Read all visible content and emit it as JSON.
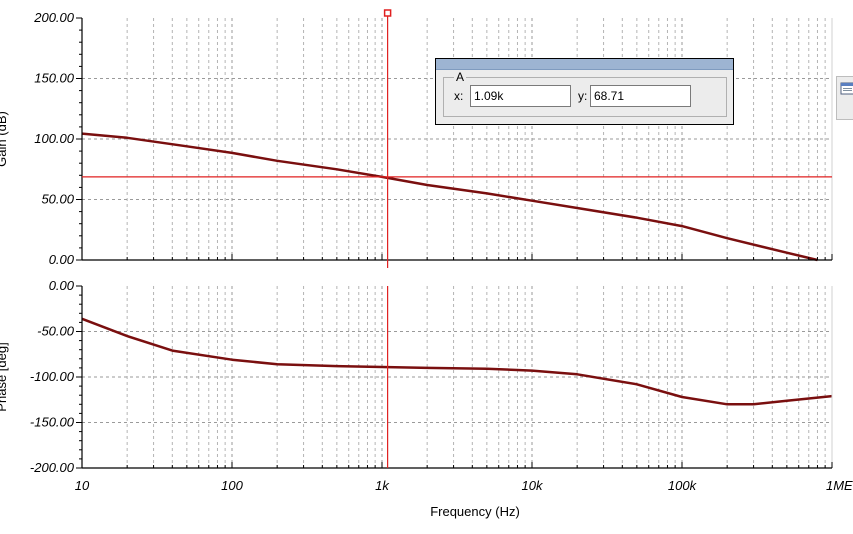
{
  "chart_data": [
    {
      "type": "line",
      "name": "gain",
      "ylabel": "Gain (dB)",
      "xscale": "log",
      "xlim": [
        10,
        1000000
      ],
      "ylim": [
        0,
        200
      ],
      "grid": true,
      "yticks": [
        "200.00",
        "150.00",
        "100.00",
        "50.00",
        "0.00"
      ],
      "color": "#7a0f0f",
      "x": [
        10,
        20,
        50,
        100,
        200,
        500,
        1000,
        2000,
        5000,
        10000,
        20000,
        50000,
        100000,
        200000,
        500000,
        800000
      ],
      "y": [
        104.5,
        101,
        94,
        88.5,
        82,
        75,
        68.7,
        62,
        55,
        49,
        43,
        35,
        28,
        18,
        6,
        0
      ]
    },
    {
      "type": "line",
      "name": "phase",
      "ylabel": "Phase [deg]",
      "xlabel": "Frequency (Hz)",
      "xscale": "log",
      "xlim": [
        10,
        1000000
      ],
      "ylim": [
        -200,
        0
      ],
      "grid": true,
      "yticks": [
        "0.00",
        "-50.00",
        "-100.00",
        "-150.00",
        "-200.00"
      ],
      "xticks": [
        "10",
        "100",
        "1k",
        "10k",
        "100k",
        "1ME"
      ],
      "color": "#7a0f0f",
      "x": [
        10,
        20,
        40,
        100,
        200,
        500,
        1000,
        2000,
        5000,
        10000,
        20000,
        50000,
        100000,
        200000,
        300000,
        500000,
        1000000
      ],
      "y": [
        -36,
        -55,
        -71,
        -81,
        -86,
        -88,
        -89,
        -90,
        -91,
        -93,
        -97,
        -108,
        -122,
        -130,
        -130,
        -126,
        -121
      ]
    }
  ],
  "cursor": {
    "group_label": "A",
    "x_label": "x:",
    "x_value": "1.09k",
    "y_label": "y:",
    "y_value": "68.71",
    "x": 1090,
    "y": 68.71,
    "color": "#e02020"
  }
}
